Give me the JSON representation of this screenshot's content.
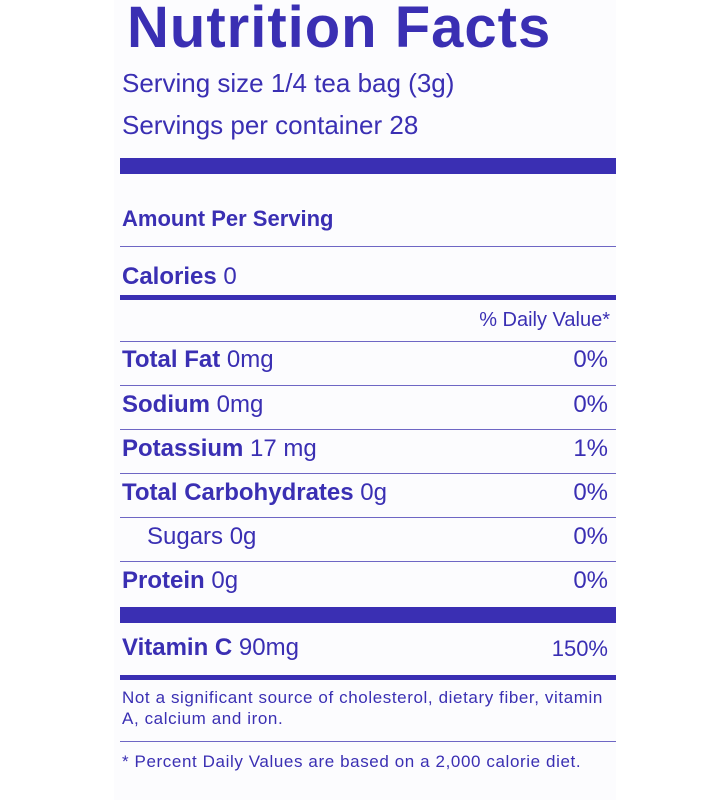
{
  "label": {
    "title": "Nutrition Facts",
    "serving_size": "Serving size 1/4 tea bag (3g)",
    "servings_per_container": "Servings per container 28",
    "amount_per_serving": "Amount Per Serving",
    "calories": {
      "name": "Calories",
      "value": " 0"
    },
    "daily_value_header": "% Daily Value*",
    "nutrients": [
      {
        "name": "Total Fat",
        "amount": " 0mg",
        "dv": "0%"
      },
      {
        "name": "Sodium",
        "amount": " 0mg",
        "dv": "0%"
      },
      {
        "name": "Potassium",
        "amount": " 17 mg",
        "dv": "1%"
      },
      {
        "name": "Total Carbohydrates",
        "amount": " 0g",
        "dv": "0%"
      },
      {
        "name": "",
        "amount": "Sugars 0g",
        "dv": "0%"
      },
      {
        "name": "Protein",
        "amount": " 0g",
        "dv": "0%"
      }
    ],
    "vitamin_c": {
      "name": "Vitamin C",
      "amount": " 90mg",
      "dv": "150%"
    },
    "footnote_1": "Not a significant source of cholesterol, dietary fiber, vitamin A, calcium and iron.",
    "footnote_2": "* Percent Daily Values are based on a 2,000 calorie diet.",
    "colors": {
      "ink": "#3a2fb3",
      "background": "#fcfcfe"
    }
  }
}
